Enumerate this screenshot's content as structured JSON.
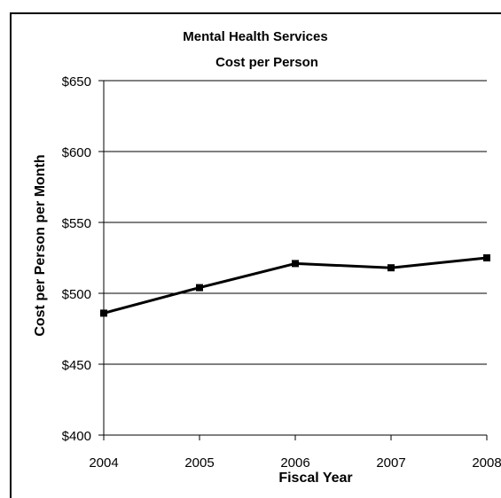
{
  "chart_data": {
    "type": "line",
    "title": "Mental Health Services",
    "subtitle": "Cost per Person",
    "xlabel": "Fiscal Year",
    "ylabel": "Cost per Person per Month",
    "categories": [
      "2004",
      "2005",
      "2006",
      "2007",
      "2008"
    ],
    "series": [
      {
        "values": [
          486,
          504,
          521,
          518,
          525
        ]
      }
    ],
    "ylim": [
      400,
      650
    ],
    "y_ticks": [
      400,
      450,
      500,
      550,
      600,
      650
    ],
    "y_tick_labels": [
      "$400",
      "$450",
      "$500",
      "$550",
      "$600",
      "$650"
    ],
    "grid": true,
    "legend": "none",
    "colors": {
      "line": "#000000",
      "grid": "#000000",
      "background": "#ffffff"
    }
  }
}
